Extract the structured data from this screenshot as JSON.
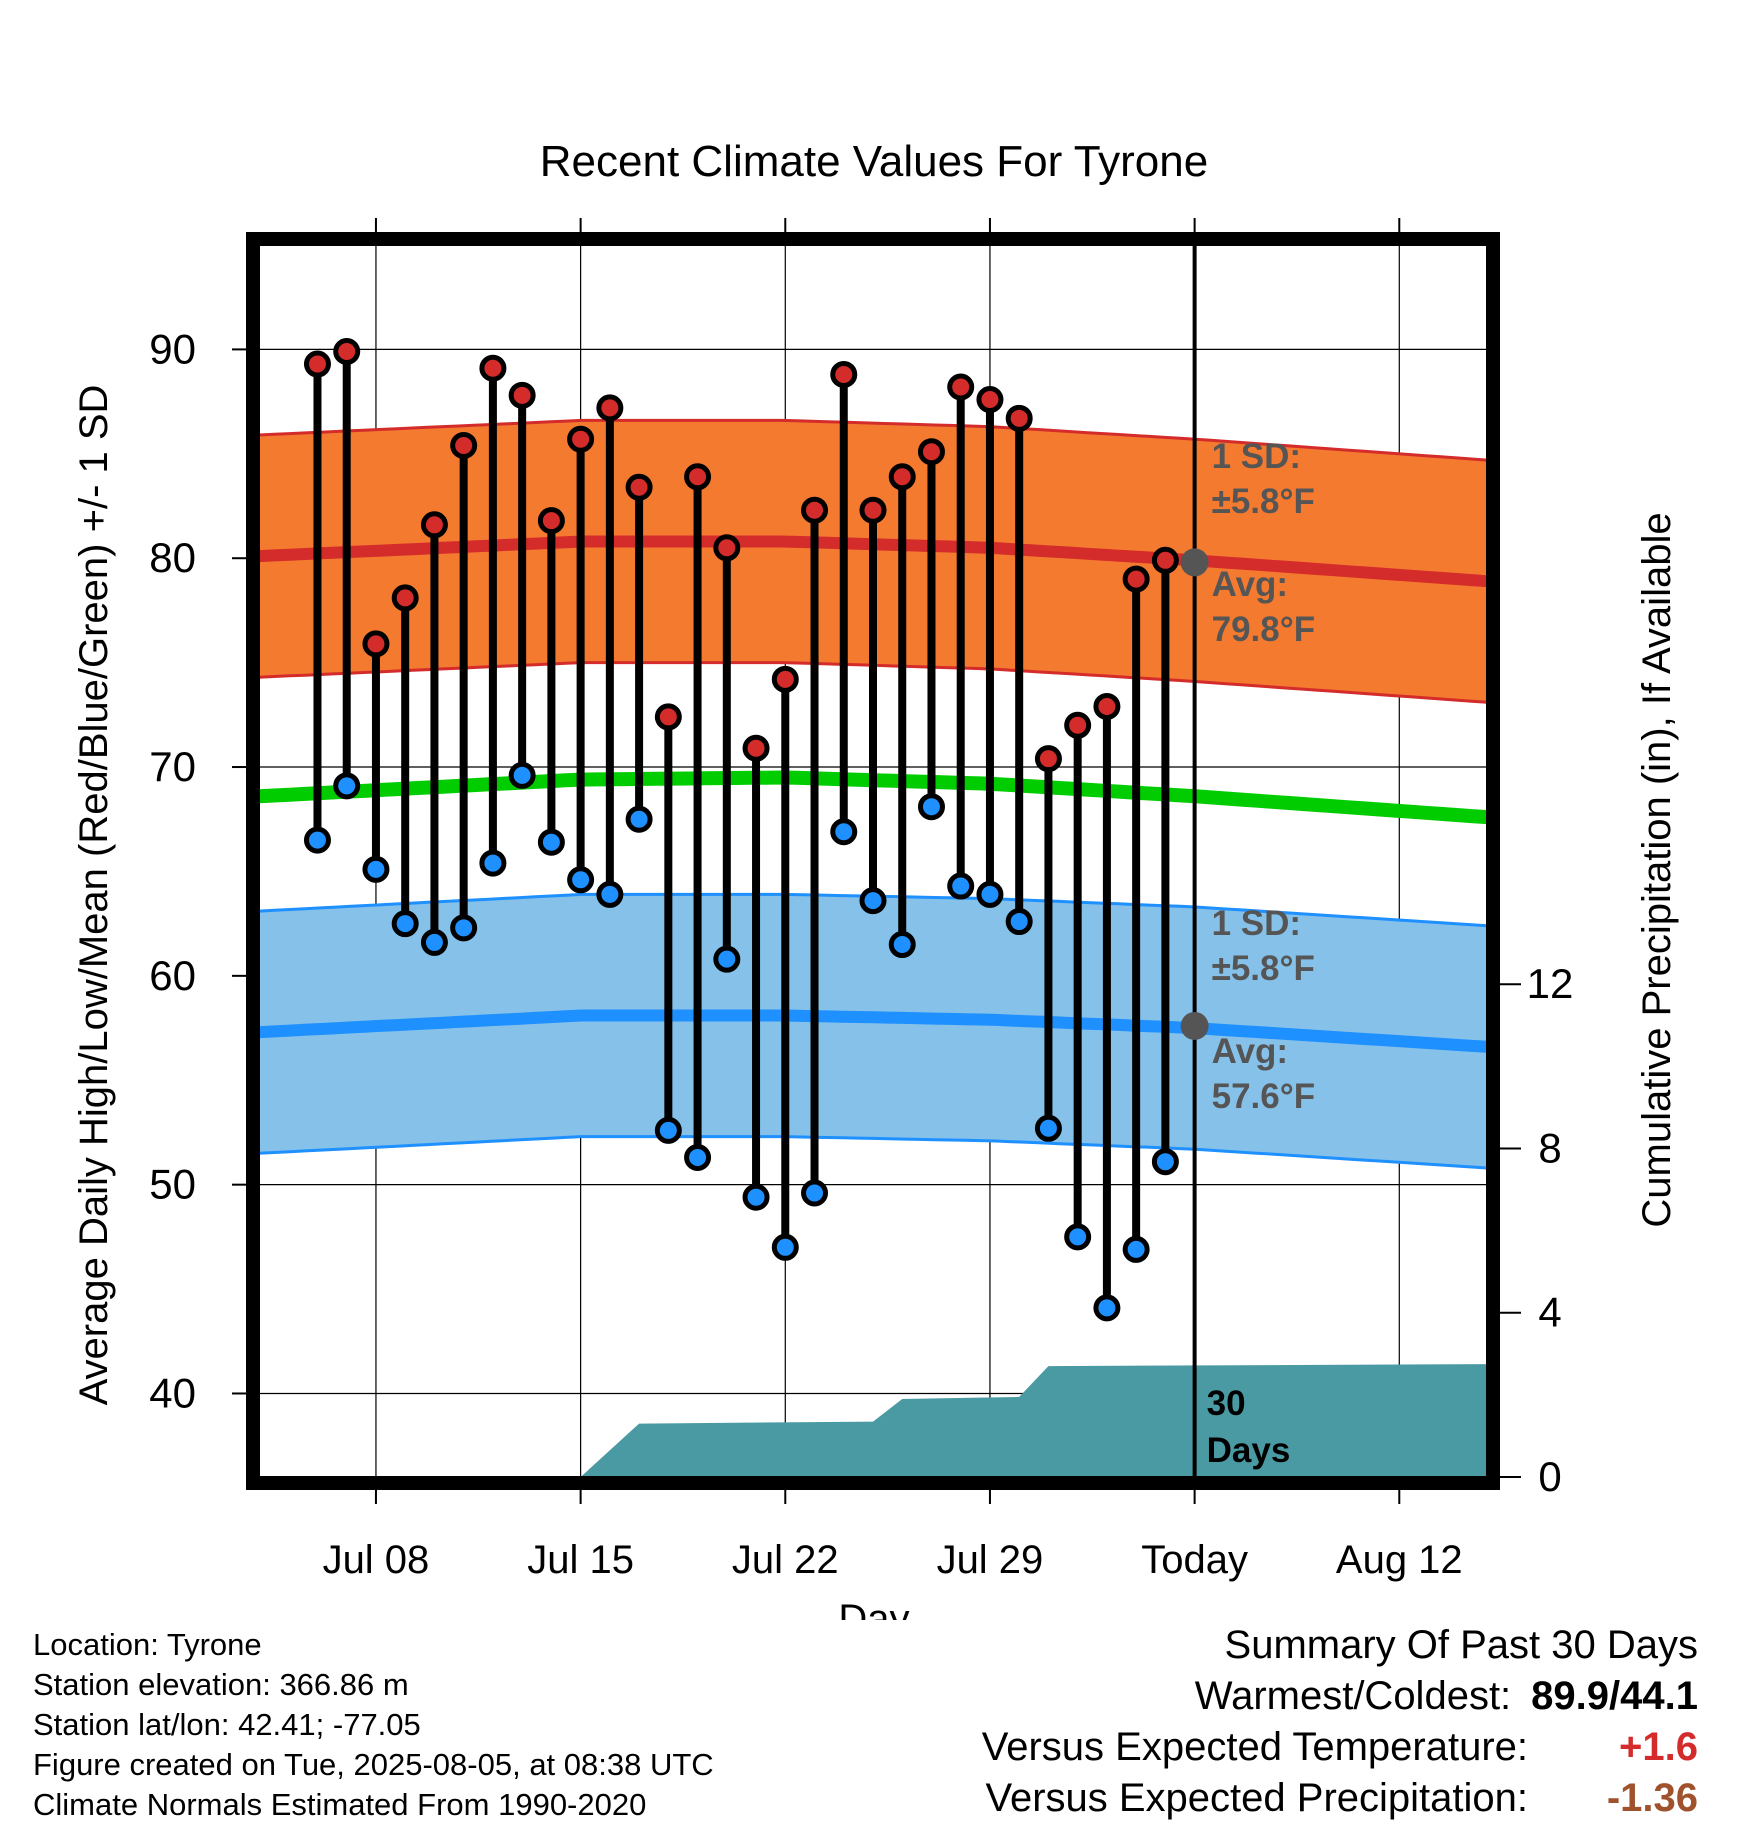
{
  "chart_data": {
    "type": "line",
    "title": "Recent Climate Values For Tyrone",
    "xlabel": "Day",
    "ylabel": "Average Daily High/Low/Mean (Red/Blue/Green) +/- 1 SD",
    "ylabel_right": "Cumulative Precipitation (in), If Available",
    "ylim": [
      36,
      95
    ],
    "y_ticks": [
      40,
      50,
      60,
      70,
      80,
      90
    ],
    "y2lim": [
      0,
      30
    ],
    "y2_ticks": [
      0,
      4,
      8,
      12
    ],
    "x_ticks": [
      {
        "date": "2025-07-08",
        "label": "Jul 08"
      },
      {
        "date": "2025-07-15",
        "label": "Jul 15"
      },
      {
        "date": "2025-07-22",
        "label": "Jul 22"
      },
      {
        "date": "2025-07-29",
        "label": "Jul 29"
      },
      {
        "date": "2025-08-05",
        "label": "Today"
      },
      {
        "date": "2025-08-12",
        "label": "Aug 12"
      }
    ],
    "xlim": [
      "2025-07-04",
      "2025-08-15"
    ],
    "grid": true,
    "days": [
      "2025-07-06",
      "2025-07-07",
      "2025-07-08",
      "2025-07-09",
      "2025-07-10",
      "2025-07-11",
      "2025-07-12",
      "2025-07-13",
      "2025-07-14",
      "2025-07-15",
      "2025-07-16",
      "2025-07-17",
      "2025-07-18",
      "2025-07-19",
      "2025-07-20",
      "2025-07-21",
      "2025-07-22",
      "2025-07-23",
      "2025-07-24",
      "2025-07-25",
      "2025-07-26",
      "2025-07-27",
      "2025-07-28",
      "2025-07-29",
      "2025-07-30",
      "2025-07-31",
      "2025-08-01",
      "2025-08-02",
      "2025-08-03",
      "2025-08-04"
    ],
    "series": [
      {
        "name": "High",
        "color": "#d42b2b",
        "values": [
          89.3,
          89.9,
          75.9,
          78.1,
          81.6,
          85.4,
          89.1,
          87.8,
          81.8,
          85.7,
          87.2,
          83.4,
          72.4,
          83.9,
          80.5,
          70.9,
          74.2,
          82.3,
          88.8,
          82.3,
          83.9,
          85.1,
          88.2,
          87.6,
          86.7,
          70.4,
          72.0,
          72.9,
          79.0,
          79.9
        ]
      },
      {
        "name": "Low",
        "color": "#1e90ff",
        "values": [
          66.5,
          69.1,
          65.1,
          62.5,
          61.6,
          62.3,
          65.4,
          69.6,
          66.4,
          64.6,
          63.9,
          67.5,
          52.6,
          51.3,
          60.8,
          49.4,
          47.0,
          49.6,
          66.9,
          63.6,
          61.5,
          68.1,
          64.3,
          63.9,
          62.6,
          52.7,
          47.5,
          44.1,
          46.9,
          51.1
        ]
      }
    ],
    "normals": {
      "dates": [
        "2025-07-04",
        "2025-07-15",
        "2025-07-22",
        "2025-07-29",
        "2025-08-05",
        "2025-08-15"
      ],
      "high_avg": [
        80.1,
        80.8,
        80.8,
        80.5,
        79.9,
        78.9
      ],
      "high_sd": 5.8,
      "low_avg": [
        57.3,
        58.1,
        58.1,
        57.9,
        57.5,
        56.6
      ],
      "low_sd": 5.8,
      "mean_avg": [
        68.6,
        69.4,
        69.5,
        69.2,
        68.6,
        67.6
      ],
      "high_sd_color": "#f47a30",
      "low_sd_color": "#85c1e9",
      "mean_color": "#00cc00"
    },
    "precipitation": {
      "color": "#4a9aa3",
      "dates": [
        "2025-07-15",
        "2025-07-17",
        "2025-07-25",
        "2025-07-26",
        "2025-07-30",
        "2025-07-31",
        "2025-08-15"
      ],
      "values": [
        0.0,
        1.3,
        1.35,
        1.9,
        1.95,
        2.7,
        2.75
      ]
    },
    "annotations": {
      "high_sd_label": "1 SD:",
      "high_sd_value": "±5.8°F",
      "high_avg_label": "Avg:",
      "high_avg_value": "79.8°F",
      "low_sd_label": "1 SD:",
      "low_sd_value": "±5.8°F",
      "low_avg_label": "Avg:",
      "low_avg_value": "57.6°F",
      "today_high": 79.8,
      "today_low": 57.6,
      "window_label_1": "30",
      "window_label_2": "Days"
    }
  },
  "footer": {
    "location": "Location: Tyrone",
    "elevation": "Station elevation: 366.86 m",
    "latlon": "Station lat/lon: 42.41; -77.05",
    "created": "Figure created on Tue, 2025-08-05, at 08:38 UTC",
    "normals": "Climate Normals Estimated From 1990-2020"
  },
  "summary": {
    "title": "Summary Of Past 30 Days",
    "warmest_label": "Warmest/Coldest:",
    "warmest_value": "89.9/44.1",
    "temp_label": "Versus Expected Temperature:",
    "temp_value": "+1.6",
    "temp_color": "#d42b2b",
    "precip_label": "Versus Expected Precipitation:",
    "precip_value": "-1.36",
    "precip_color": "#a0522d"
  }
}
